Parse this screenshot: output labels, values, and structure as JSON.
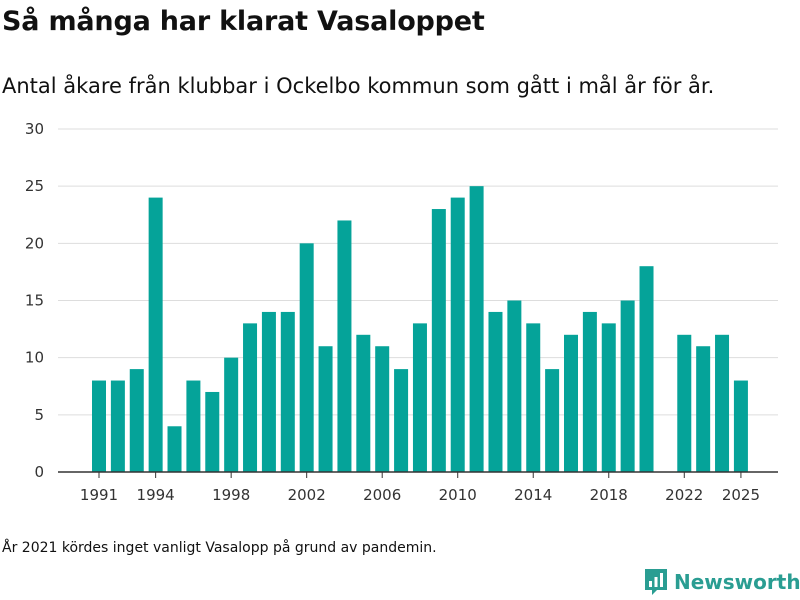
{
  "title": "Så många har klarat Vasaloppet",
  "subtitle": "Antal åkare från klubbar i Ockelbo kommun som gått i mål år för år.",
  "note": "År 2021 kördes inget vanligt Vasalopp på grund av pandemin.",
  "brand": "Newsworthy",
  "colors": {
    "bar": "#05a399",
    "grid": "#dddddd",
    "axis": "#333333",
    "brand": "#2a9d92"
  },
  "chart_data": {
    "type": "bar",
    "title": "Så många har klarat Vasaloppet",
    "xlabel": "",
    "ylabel": "",
    "ylim": [
      0,
      30
    ],
    "yticks": [
      0,
      5,
      10,
      15,
      20,
      25,
      30
    ],
    "xtick_labels": [
      1991,
      1994,
      1998,
      2002,
      2006,
      2010,
      2014,
      2018,
      2022,
      2025
    ],
    "categories": [
      1991,
      1992,
      1993,
      1994,
      1995,
      1996,
      1997,
      1998,
      1999,
      2000,
      2001,
      2002,
      2003,
      2004,
      2005,
      2006,
      2007,
      2008,
      2009,
      2010,
      2011,
      2012,
      2013,
      2014,
      2015,
      2016,
      2017,
      2018,
      2019,
      2020,
      2021,
      2022,
      2023,
      2024,
      2025
    ],
    "values": [
      8,
      8,
      9,
      24,
      4,
      8,
      7,
      10,
      13,
      14,
      14,
      20,
      11,
      22,
      12,
      11,
      9,
      13,
      23,
      24,
      25,
      14,
      15,
      13,
      9,
      12,
      14,
      13,
      15,
      18,
      null,
      12,
      11,
      12,
      8
    ]
  }
}
